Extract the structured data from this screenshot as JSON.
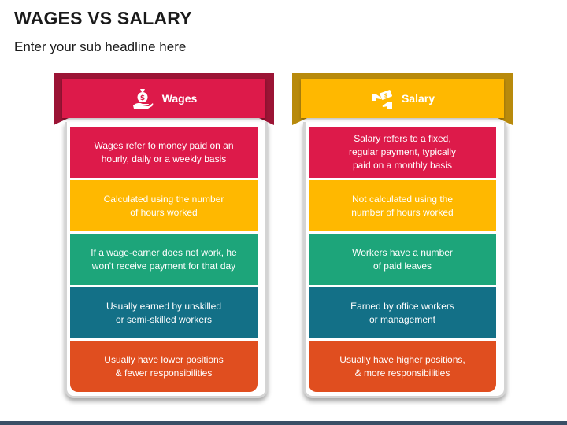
{
  "title": "WAGES VS SALARY",
  "subtitle": "Enter your sub headline here",
  "colors": {
    "red": "#dd1a4a",
    "red_dark": "#9b1435",
    "yellow": "#ffb800",
    "yellow_dark": "#b88a0c",
    "green": "#1da57a",
    "blue": "#137087",
    "orange": "#e04e1f",
    "band": "#3a4f66"
  },
  "wages": {
    "header": "Wages",
    "icon": "money-bag-hand-icon",
    "rows": [
      "Wages refer to money paid on an\nhourly, daily or a weekly basis",
      "Calculated using the number\nof hours worked",
      "If a wage-earner does not work, he\nwon't receive payment for that day",
      "Usually earned by unskilled\nor semi-skilled workers",
      "Usually have lower positions\n& fewer responsibilities"
    ]
  },
  "salary": {
    "header": "Salary",
    "icon": "hand-money-transfer-icon",
    "rows": [
      "Salary refers to a fixed,\nregular payment, typically\npaid on a monthly basis",
      "Not calculated using the\nnumber of hours worked",
      "Workers have a number\nof paid leaves",
      "Earned by office workers\nor management",
      "Usually have higher positions,\n& more responsibilities"
    ]
  }
}
